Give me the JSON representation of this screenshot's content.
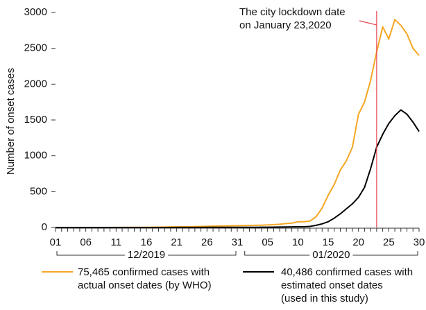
{
  "chart_data": {
    "type": "line",
    "y_label": "Number of onset cases",
    "categories": [
      "01",
      null,
      null,
      null,
      null,
      "06",
      null,
      null,
      null,
      null,
      "11",
      null,
      null,
      null,
      null,
      "16",
      null,
      null,
      null,
      null,
      "21",
      null,
      null,
      null,
      null,
      "26",
      null,
      null,
      null,
      null,
      "31",
      null,
      null,
      null,
      null,
      "05",
      null,
      null,
      null,
      null,
      "10",
      null,
      null,
      null,
      null,
      "15",
      null,
      null,
      null,
      null,
      "20",
      null,
      null,
      null,
      null,
      "25",
      null,
      null,
      null,
      null,
      "30"
    ],
    "x_groups": [
      {
        "label": "12/2019",
        "count": 31
      },
      {
        "label": "01/2020",
        "count": 30
      }
    ],
    "series": [
      {
        "name": "75,465 confirmed cases with\nactual onset dates (by WHO)",
        "color": "#f5a623",
        "values": [
          0,
          0,
          0,
          0,
          0,
          0,
          0,
          0,
          0,
          0,
          1,
          1,
          2,
          2,
          3,
          3,
          4,
          5,
          6,
          8,
          8,
          10,
          10,
          12,
          14,
          16,
          18,
          20,
          22,
          24,
          25,
          26,
          28,
          30,
          32,
          35,
          40,
          45,
          55,
          60,
          80,
          80,
          90,
          150,
          270,
          450,
          600,
          800,
          930,
          1120,
          1580,
          1750,
          2050,
          2450,
          2800,
          2630,
          2900,
          2820,
          2700,
          2500,
          2400
        ]
      },
      {
        "name": "40,486 confirmed cases with\nestimated onset dates\n(used in this study)",
        "color": "#000000",
        "values": [
          0,
          0,
          0,
          0,
          0,
          0,
          0,
          0,
          0,
          0,
          0,
          0,
          0,
          0,
          0,
          0,
          0,
          0,
          0,
          0,
          1,
          1,
          1,
          1,
          1,
          2,
          2,
          2,
          2,
          3,
          3,
          2,
          3,
          3,
          4,
          4,
          5,
          6,
          7,
          8,
          10,
          10,
          15,
          30,
          50,
          80,
          130,
          190,
          260,
          330,
          420,
          560,
          820,
          1120,
          1300,
          1450,
          1560,
          1640,
          1580,
          1470,
          1340
        ]
      }
    ],
    "ylim": [
      0,
      3000
    ],
    "yticks": [
      0,
      500,
      1000,
      1500,
      2000,
      2500,
      3000
    ],
    "annotation": {
      "text": "The city lockdown date\non January 23,2020",
      "index": 53,
      "color": "#e8454f"
    }
  }
}
